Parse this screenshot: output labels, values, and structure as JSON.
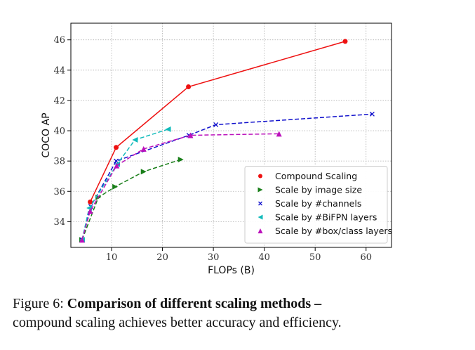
{
  "chart_data": {
    "type": "line",
    "xlabel": "FLOPs (B)",
    "ylabel": "COCO AP",
    "xlim": [
      2,
      65
    ],
    "ylim": [
      32.3,
      47.1
    ],
    "x_ticks": [
      10,
      20,
      30,
      40,
      50,
      60
    ],
    "y_ticks": [
      34,
      36,
      38,
      40,
      42,
      44,
      46
    ],
    "grid": true,
    "legend_position": "bottom-right",
    "series": [
      {
        "name": "Compound Scaling",
        "color": "#ee1111",
        "marker": "circle",
        "linestyle": "solid",
        "x": [
          5.8,
          10.9,
          25.1,
          55.9
        ],
        "y": [
          35.3,
          38.9,
          42.9,
          45.9
        ]
      },
      {
        "name": "Scale by image size",
        "color": "#1a7f1a",
        "marker": "triangle-right",
        "linestyle": "dashed",
        "x": [
          4.2,
          7.4,
          10.7,
          16.3,
          23.6
        ],
        "y": [
          32.8,
          35.6,
          36.3,
          37.3,
          38.1
        ]
      },
      {
        "name": "Scale by #channels",
        "color": "#1010cc",
        "marker": "x",
        "linestyle": "dashed",
        "x": [
          4.2,
          5.9,
          10.9,
          25.2,
          30.5,
          61.2
        ],
        "y": [
          32.8,
          35.0,
          38.0,
          39.7,
          40.4,
          41.1
        ]
      },
      {
        "name": "Scale by #BiFPN layers",
        "color": "#11bbbb",
        "marker": "triangle-left",
        "linestyle": "dashed",
        "x": [
          4.2,
          5.6,
          11.1,
          14.6,
          21.1
        ],
        "y": [
          32.8,
          34.9,
          37.8,
          39.4,
          40.1
        ]
      },
      {
        "name": "Scale by #box/class layers",
        "color": "#bb11bb",
        "marker": "triangle-up",
        "linestyle": "dashed",
        "x": [
          4.2,
          5.8,
          11.0,
          16.3,
          25.5,
          42.9
        ],
        "y": [
          32.8,
          34.7,
          37.7,
          38.8,
          39.7,
          39.8
        ]
      }
    ]
  },
  "caption": {
    "prefix": "Figure 6:",
    "bold": "Comparison of different scaling methods –",
    "rest": "compound scaling achieves better accuracy and efficiency."
  }
}
